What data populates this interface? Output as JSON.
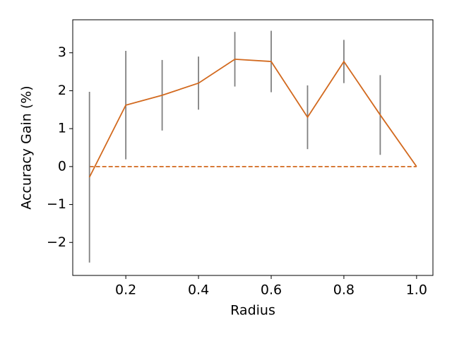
{
  "chart_data": {
    "type": "line",
    "x_label": "Radius",
    "y_label": "Accuracy Gain (%)",
    "x": [
      0.1,
      0.2,
      0.3,
      0.4,
      0.5,
      0.6,
      0.7,
      0.8,
      0.9,
      1.0
    ],
    "series": [
      {
        "color": "#d2691e",
        "error_color": "#808080",
        "values": [
          -0.28,
          1.62,
          1.88,
          2.2,
          2.83,
          2.77,
          1.3,
          2.77,
          1.36,
          0
        ],
        "errors": [
          2.25,
          1.43,
          0.93,
          0.7,
          0.72,
          0.81,
          0.84,
          0.57,
          1.05,
          null
        ]
      }
    ],
    "hline": {
      "y": 0,
      "color": "#d2691e",
      "dashed": true
    },
    "xlim": [
      0.054,
      1.045
    ],
    "ylim": [
      -2.87,
      3.87
    ],
    "xticks": [
      0.2,
      0.4,
      0.6,
      0.8,
      {
        "value": 1,
        "label": "1.0"
      }
    ],
    "yticks": [
      {
        "value": -2,
        "label": "−2"
      },
      {
        "value": -1,
        "label": "−1"
      },
      0,
      1,
      2,
      3
    ]
  }
}
